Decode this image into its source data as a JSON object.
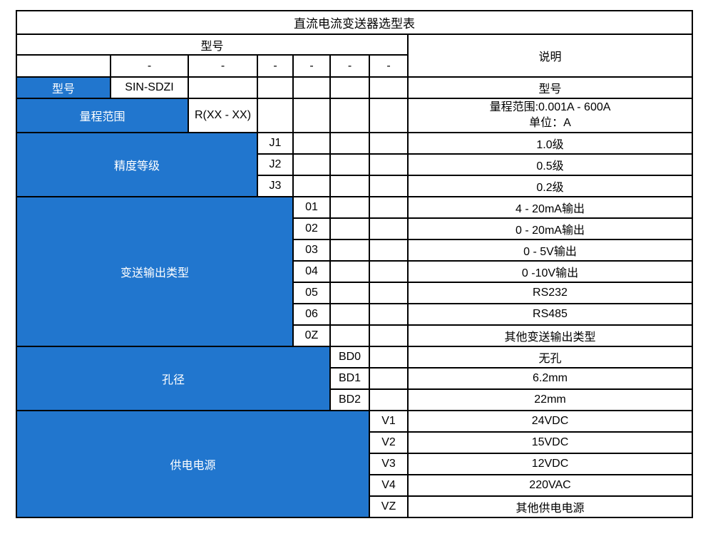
{
  "colors": {
    "accent_blue": "#2176ce",
    "border": "#000000",
    "text": "#000000",
    "label_text": "#ffffff"
  },
  "table": {
    "title": "直流电流变送器选型表",
    "header": {
      "model_label": "型号",
      "description_label": "说明",
      "separator": "-",
      "separator_count": 6
    },
    "groups": [
      {
        "key": "model",
        "label": "型号",
        "label_colspan": 1,
        "rows": [
          {
            "code": "SIN-SDZI",
            "desc": "型号"
          }
        ]
      },
      {
        "key": "range",
        "label": "量程范围",
        "label_colspan": 2,
        "rows": [
          {
            "code": "R(XX - XX)",
            "desc_lines": [
              "量程范围:0.001A - 600A",
              "单位：A"
            ]
          }
        ]
      },
      {
        "key": "accuracy",
        "label": "精度等级",
        "label_colspan": 3,
        "rows": [
          {
            "code": "J1",
            "desc": "1.0级"
          },
          {
            "code": "J2",
            "desc": "0.5级"
          },
          {
            "code": "J3",
            "desc": "0.2级"
          }
        ]
      },
      {
        "key": "output-type",
        "label": "变送输出类型",
        "label_colspan": 4,
        "rows": [
          {
            "code": "01",
            "desc": "4 - 20mA输出"
          },
          {
            "code": "02",
            "desc": "0 - 20mA输出"
          },
          {
            "code": "03",
            "desc": "0 - 5V输出"
          },
          {
            "code": "04",
            "desc": "0 -10V输出"
          },
          {
            "code": "05",
            "desc": "RS232"
          },
          {
            "code": "06",
            "desc": "RS485"
          },
          {
            "code": "0Z",
            "desc": "其他变送输出类型"
          }
        ]
      },
      {
        "key": "aperture",
        "label": "孔径",
        "label_colspan": 5,
        "rows": [
          {
            "code": "BD0",
            "desc": "无孔"
          },
          {
            "code": "BD1",
            "desc": "6.2mm"
          },
          {
            "code": "BD2",
            "desc": "22mm"
          }
        ]
      },
      {
        "key": "power-supply",
        "label": "供电电源",
        "label_colspan": 6,
        "rows": [
          {
            "code": "V1",
            "desc": "24VDC"
          },
          {
            "code": "V2",
            "desc": "15VDC"
          },
          {
            "code": "V3",
            "desc": "12VDC"
          },
          {
            "code": "V4",
            "desc": "220VAC"
          },
          {
            "code": "VZ",
            "desc": "其他供电电源"
          }
        ]
      }
    ]
  }
}
